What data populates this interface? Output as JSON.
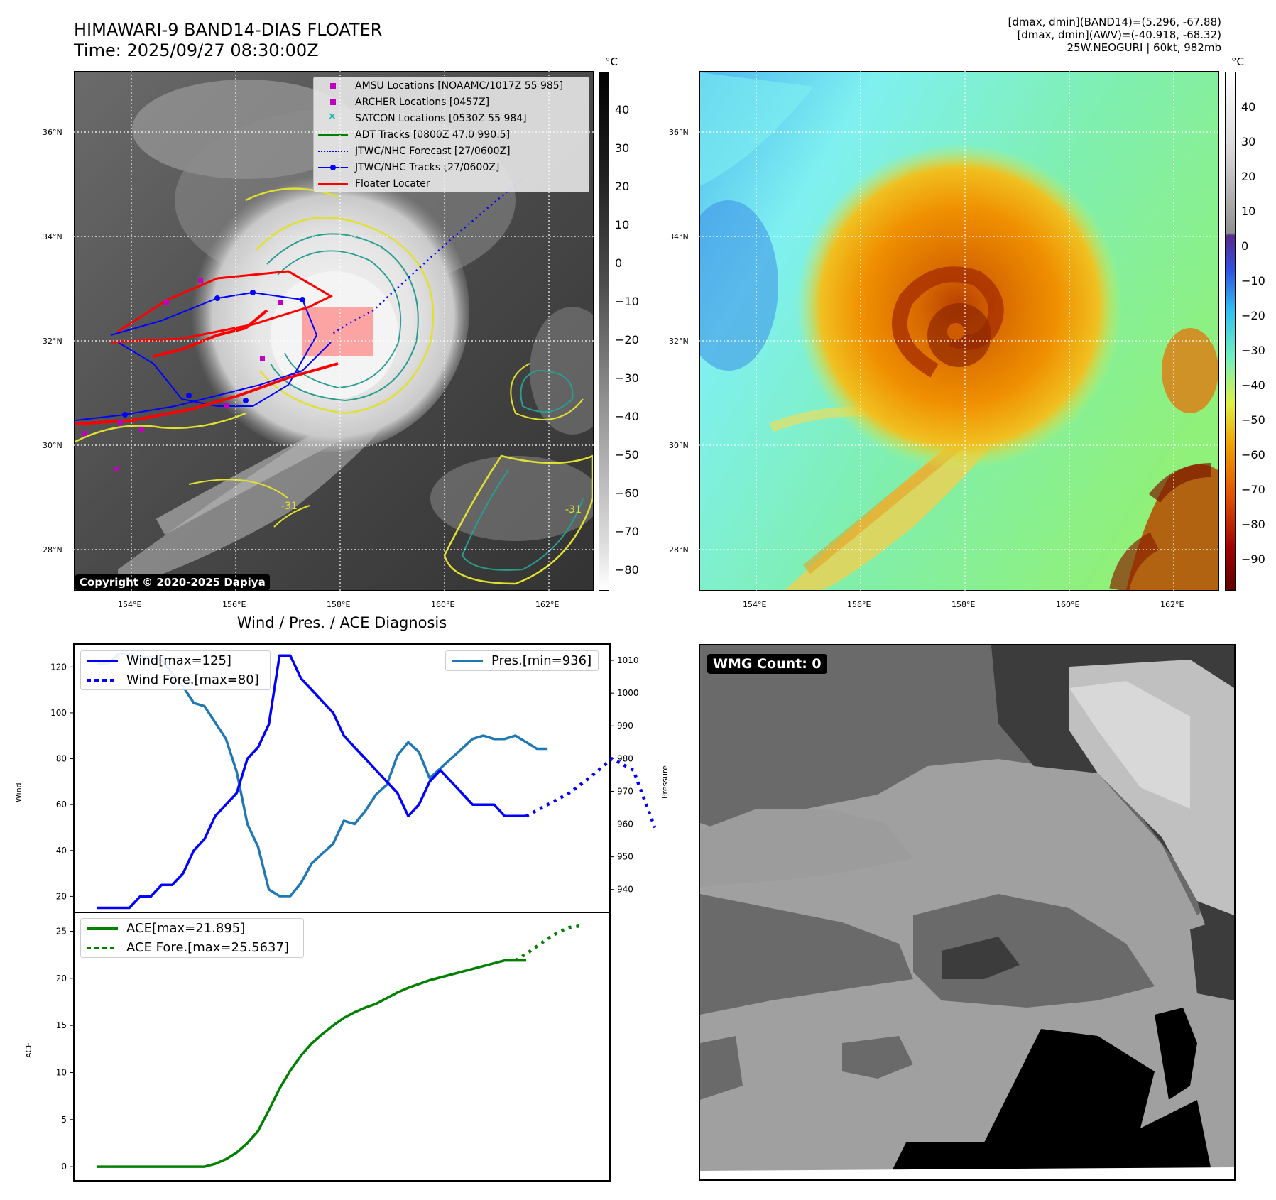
{
  "header": {
    "title_line1": "HIMAWARI-9 BAND14-DIAS FLOATER",
    "title_line2": "Time: 2025/09/27 08:30:00Z",
    "info_line1": "[dmax, dmin](BAND14)=(5.296, -67.88)",
    "info_line2": "[dmax, dmin](AWV)=(-40.918, -68.32)",
    "info_line3": "25W.NEOGURI | 60kt, 982mb"
  },
  "maps": {
    "lat_labels": [
      "36°N",
      "34°N",
      "32°N",
      "30°N",
      "28°N"
    ],
    "lon_labels": [
      "154°E",
      "156°E",
      "158°E",
      "160°E",
      "162°E"
    ],
    "colorbar_unit": "°C",
    "ir_colorbar_ticks": [
      "40",
      "30",
      "20",
      "10",
      "0",
      "−10",
      "−20",
      "−30",
      "−40",
      "−50",
      "−60",
      "−70",
      "−80"
    ],
    "wv_colorbar_ticks": [
      "40",
      "30",
      "20",
      "10",
      "0",
      "−10",
      "−20",
      "−30",
      "−40",
      "−50",
      "−60",
      "−70",
      "−80",
      "−90"
    ],
    "contour_label": "-31",
    "copyright": "Copyright © 2020-2025 Dapiya",
    "legend": [
      {
        "label": "AMSU Locations [NOAAMC/1017Z 55 985]",
        "symbol": "square",
        "color": "#c000c0"
      },
      {
        "label": "ARCHER Locations [0457Z]",
        "symbol": "square",
        "color": "#c000c0"
      },
      {
        "label": "SATCON Locations [0530Z 55 984]",
        "symbol": "x",
        "color": "#20b8b0"
      },
      {
        "label": "ADT Tracks [0800Z 47.0 990.5]",
        "symbol": "line",
        "color": "#008000"
      },
      {
        "label": "JTWC/NHC Forecast [27/0600Z]",
        "symbol": "dotted",
        "color": "#0000ff"
      },
      {
        "label": "JTWC/NHC Tracks [27/0600Z]",
        "symbol": "line-dot",
        "color": "#0000ff"
      },
      {
        "label": "Floater Locater",
        "symbol": "line",
        "color": "#ff0000"
      }
    ]
  },
  "diagnosis": {
    "title": "Wind / Pres. / ACE Diagnosis",
    "wind_ylabel": "Wind",
    "pressure_ylabel": "Pressure",
    "ace_ylabel": "ACE",
    "wind_ticks": [
      "120",
      "100",
      "80",
      "60",
      "40",
      "20"
    ],
    "pressure_ticks": [
      "1010",
      "1000",
      "990",
      "980",
      "970",
      "960",
      "950",
      "940"
    ],
    "ace_ticks": [
      "25",
      "20",
      "15",
      "10",
      "5",
      "0"
    ],
    "legend_wind": "Wind[max=125]",
    "legend_wind_fore": "Wind Fore.[max=80]",
    "legend_pres": "Pres.[min=936]",
    "legend_ace": "ACE[max=21.895]",
    "legend_ace_fore": "ACE Fore.[max=25.5637]"
  },
  "wmg": {
    "label": "WMG Count: 0"
  },
  "chart_data": [
    {
      "type": "line",
      "title": "Wind / Pres. / ACE Diagnosis",
      "ylabel": "Wind",
      "ylim": [
        13,
        130
      ],
      "series": [
        {
          "name": "Wind[max=125]",
          "color": "#0000ff",
          "x": [
            0,
            1,
            2,
            3,
            4,
            5,
            6,
            7,
            8,
            9,
            10,
            11,
            12,
            13,
            14,
            15,
            16,
            17,
            18,
            19,
            20,
            21,
            22,
            23,
            24,
            25,
            26,
            27,
            28,
            29,
            30,
            31,
            32,
            33,
            34,
            35,
            36,
            37,
            38,
            39,
            40
          ],
          "values": [
            15,
            15,
            15,
            15,
            20,
            20,
            25,
            25,
            30,
            40,
            45,
            55,
            60,
            65,
            80,
            85,
            95,
            125,
            125,
            115,
            110,
            105,
            100,
            90,
            85,
            80,
            75,
            70,
            65,
            55,
            60,
            70,
            75,
            70,
            65,
            60,
            60,
            60,
            55,
            55,
            55
          ]
        },
        {
          "name": "Wind Fore.[max=80]",
          "color": "#0000ff",
          "style": "dotted",
          "x": [
            40,
            42,
            44,
            46,
            48,
            50,
            52
          ],
          "values": [
            55,
            60,
            65,
            72,
            80,
            75,
            50
          ]
        },
        {
          "name": "Pres.[min=936]",
          "color": "#1f77b4",
          "axis": "pressure",
          "ylim": [
            933,
            1015
          ],
          "x": [
            0,
            1,
            2,
            3,
            4,
            5,
            6,
            7,
            8,
            9,
            10,
            11,
            12,
            13,
            14,
            15,
            16,
            17,
            18,
            19,
            20,
            21,
            22,
            23,
            24,
            25,
            26,
            27,
            28,
            29,
            30,
            31,
            32,
            33,
            34,
            35,
            36,
            37,
            38,
            39,
            40,
            41,
            42
          ],
          "values": [
            1009,
            1009,
            1012,
            1012,
            1011,
            1011,
            1010,
            1006,
            1002,
            997,
            996,
            991,
            986,
            976,
            960,
            953,
            940,
            938,
            938,
            942,
            948,
            951,
            954,
            961,
            960,
            964,
            969,
            972,
            981,
            985,
            982,
            974,
            977,
            980,
            983,
            986,
            987,
            986,
            986,
            987,
            985,
            983,
            983
          ]
        }
      ]
    },
    {
      "type": "line",
      "ylabel": "ACE",
      "ylim": [
        -1.5,
        27
      ],
      "series": [
        {
          "name": "ACE[max=21.895]",
          "color": "#008000",
          "x": [
            0,
            2,
            4,
            6,
            8,
            10,
            12,
            14,
            16,
            18,
            20,
            22,
            24,
            26,
            28,
            30,
            32,
            34,
            36,
            38,
            40,
            42,
            44,
            46,
            48,
            50,
            52,
            54,
            56,
            58,
            60,
            62,
            64,
            66,
            68,
            70,
            72,
            74,
            76,
            78,
            80
          ],
          "values": [
            0,
            0,
            0,
            0,
            0,
            0,
            0,
            0,
            0,
            0,
            0,
            0.3,
            0.8,
            1.5,
            2.5,
            3.8,
            6,
            8.3,
            10.2,
            11.8,
            13.1,
            14.1,
            15,
            15.8,
            16.4,
            16.9,
            17.3,
            17.9,
            18.5,
            19,
            19.4,
            19.8,
            20.1,
            20.4,
            20.7,
            21,
            21.3,
            21.6,
            21.9,
            21.9,
            21.9
          ]
        },
        {
          "name": "ACE Fore.[max=25.5637]",
          "color": "#008000",
          "style": "dotted",
          "x": [
            78,
            80,
            82,
            84,
            86,
            88,
            90
          ],
          "values": [
            21.9,
            22.6,
            23.4,
            24.2,
            24.9,
            25.4,
            25.56
          ]
        }
      ]
    }
  ]
}
